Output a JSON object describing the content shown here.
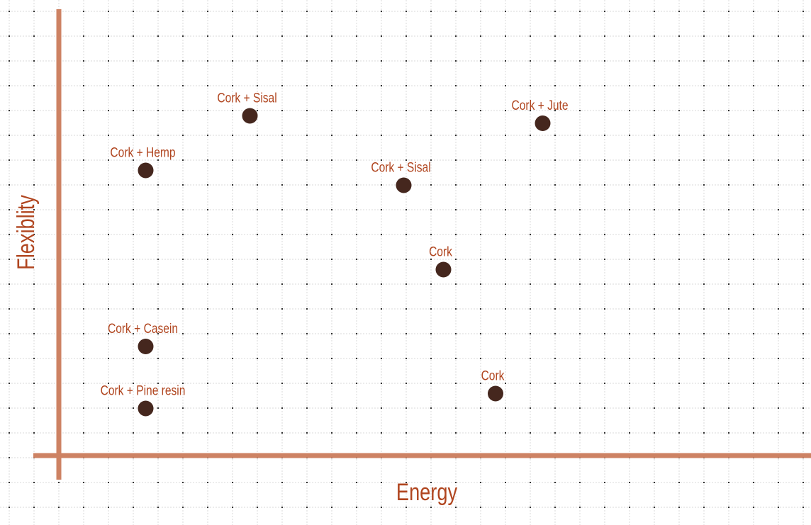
{
  "chart_data": {
    "type": "scatter",
    "xlabel": "Energy",
    "ylabel": "Flexiblity",
    "xlim": [
      0,
      30.3
    ],
    "ylim": [
      0,
      18
    ],
    "grid": true,
    "ticks_shown": false,
    "colors": {
      "axis": "#cd8263",
      "point": "#45271e",
      "label": "#b0451f",
      "grid": "#d9d9d9"
    },
    "points": [
      {
        "label": "Cork + Sisal",
        "x": 7.7,
        "y": 13.7
      },
      {
        "label": "Cork + Jute",
        "x": 19.5,
        "y": 13.4
      },
      {
        "label": "Cork + Hemp",
        "x": 3.5,
        "y": 11.5
      },
      {
        "label": "Cork + Sisal",
        "x": 13.9,
        "y": 10.9
      },
      {
        "label": "Cork",
        "x": 15.5,
        "y": 7.5
      },
      {
        "label": "Cork + Casein",
        "x": 3.5,
        "y": 4.4
      },
      {
        "label": "Cork + Pine resin",
        "x": 3.5,
        "y": 1.9
      },
      {
        "label": "Cork",
        "x": 17.6,
        "y": 2.5
      }
    ]
  }
}
